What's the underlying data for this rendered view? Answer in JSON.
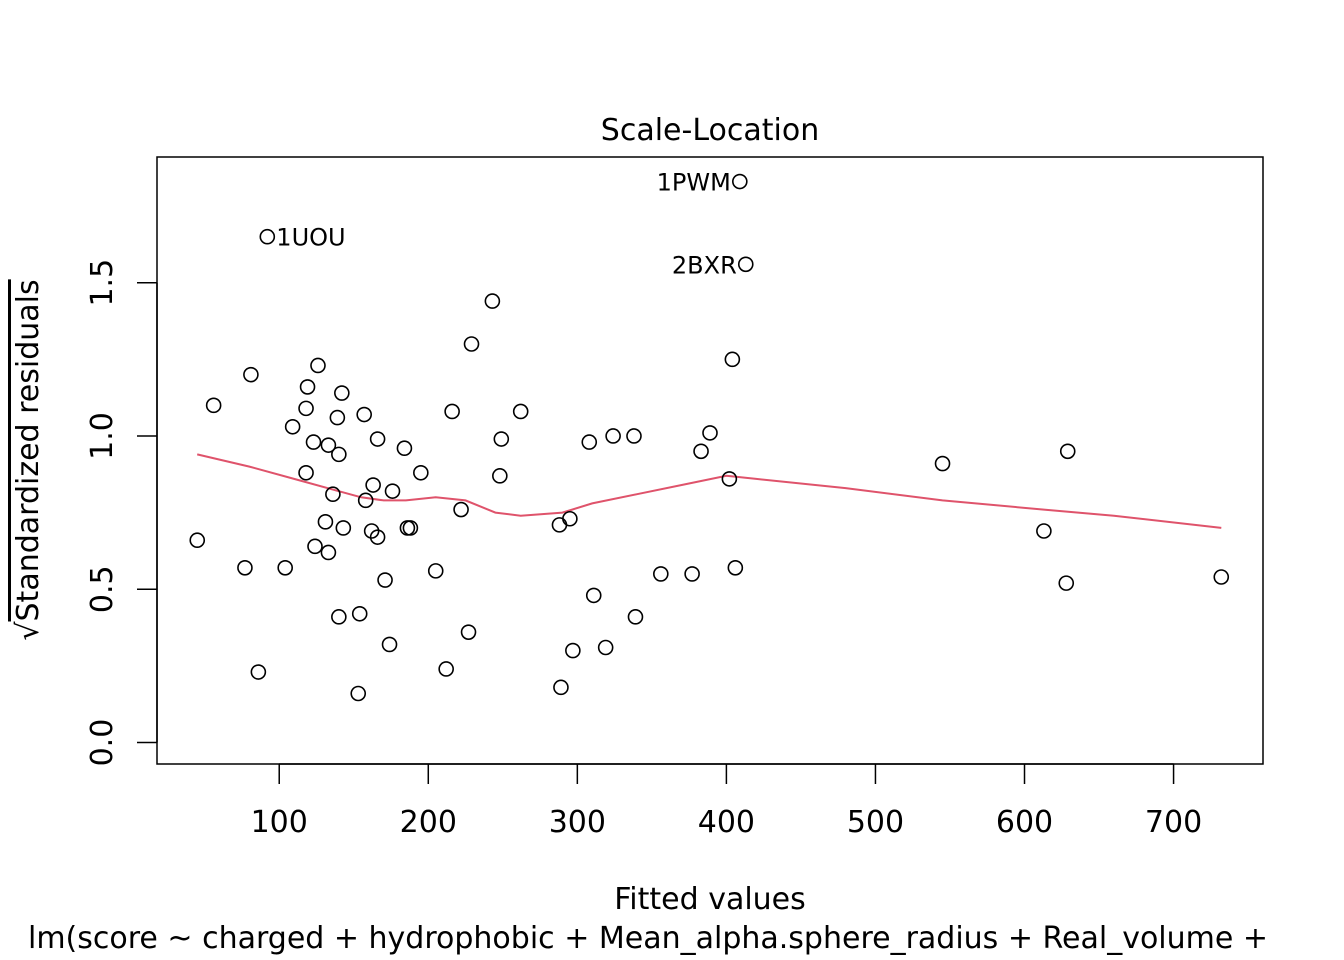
{
  "chart_data": {
    "type": "scatter",
    "title": "Scale-Location",
    "xlabel": "Fitted values",
    "ylabel": "Standardized residuals",
    "ylabel_prefix": "√",
    "subtitle": "lm(score ~ charged + hydrophobic + Mean_alpha.sphere_radius + Real_volume +",
    "xlim": [
      18,
      760
    ],
    "ylim": [
      -0.07,
      1.91
    ],
    "x_ticks": [
      100,
      200,
      300,
      400,
      500,
      600,
      700
    ],
    "x_tick_labels": [
      "100",
      "200",
      "300",
      "400",
      "500",
      "600",
      "700"
    ],
    "y_ticks": [
      0.0,
      0.5,
      1.0,
      1.5
    ],
    "y_tick_labels": [
      "0.0",
      "0.5",
      "1.0",
      "1.5"
    ],
    "grid": false,
    "smooth_color": "#DF536B",
    "point_color": "#000000",
    "points": [
      [
        409,
        1.83
      ],
      [
        92,
        1.65
      ],
      [
        413,
        1.56
      ],
      [
        243,
        1.44
      ],
      [
        229,
        1.3
      ],
      [
        404,
        1.25
      ],
      [
        126,
        1.23
      ],
      [
        81,
        1.2
      ],
      [
        119,
        1.16
      ],
      [
        142,
        1.14
      ],
      [
        56,
        1.1
      ],
      [
        118,
        1.09
      ],
      [
        216,
        1.08
      ],
      [
        262,
        1.08
      ],
      [
        157,
        1.07
      ],
      [
        139,
        1.06
      ],
      [
        109,
        1.03
      ],
      [
        389,
        1.01
      ],
      [
        324,
        1.0
      ],
      [
        338,
        1.0
      ],
      [
        166,
        0.99
      ],
      [
        249,
        0.99
      ],
      [
        123,
        0.98
      ],
      [
        308,
        0.98
      ],
      [
        133,
        0.97
      ],
      [
        184,
        0.96
      ],
      [
        383,
        0.95
      ],
      [
        629,
        0.95
      ],
      [
        140,
        0.94
      ],
      [
        545,
        0.91
      ],
      [
        118,
        0.88
      ],
      [
        195,
        0.88
      ],
      [
        248,
        0.87
      ],
      [
        402,
        0.86
      ],
      [
        163,
        0.84
      ],
      [
        176,
        0.82
      ],
      [
        136,
        0.81
      ],
      [
        158,
        0.79
      ],
      [
        222,
        0.76
      ],
      [
        131,
        0.72
      ],
      [
        295,
        0.73
      ],
      [
        288,
        0.71
      ],
      [
        143,
        0.7
      ],
      [
        162,
        0.69
      ],
      [
        186,
        0.7
      ],
      [
        188,
        0.7
      ],
      [
        613,
        0.69
      ],
      [
        166,
        0.67
      ],
      [
        45,
        0.66
      ],
      [
        124,
        0.64
      ],
      [
        133,
        0.62
      ],
      [
        77,
        0.57
      ],
      [
        104,
        0.57
      ],
      [
        205,
        0.56
      ],
      [
        406,
        0.57
      ],
      [
        377,
        0.55
      ],
      [
        356,
        0.55
      ],
      [
        171,
        0.53
      ],
      [
        732,
        0.54
      ],
      [
        628,
        0.52
      ],
      [
        311,
        0.48
      ],
      [
        154,
        0.42
      ],
      [
        140,
        0.41
      ],
      [
        339,
        0.41
      ],
      [
        227,
        0.36
      ],
      [
        174,
        0.32
      ],
      [
        297,
        0.3
      ],
      [
        319,
        0.31
      ],
      [
        212,
        0.24
      ],
      [
        86,
        0.23
      ],
      [
        289,
        0.18
      ],
      [
        153,
        0.16
      ]
    ],
    "labels": [
      {
        "text": "1PWM",
        "x": 409,
        "y": 1.83,
        "side": "left"
      },
      {
        "text": "1UOU",
        "x": 92,
        "y": 1.65,
        "side": "right"
      },
      {
        "text": "2BXR",
        "x": 413,
        "y": 1.56,
        "side": "left"
      }
    ],
    "smooth": [
      [
        45,
        0.94
      ],
      [
        80,
        0.9
      ],
      [
        110,
        0.86
      ],
      [
        140,
        0.82
      ],
      [
        155,
        0.8
      ],
      [
        170,
        0.79
      ],
      [
        185,
        0.79
      ],
      [
        205,
        0.8
      ],
      [
        225,
        0.79
      ],
      [
        245,
        0.75
      ],
      [
        262,
        0.74
      ],
      [
        290,
        0.75
      ],
      [
        310,
        0.78
      ],
      [
        340,
        0.81
      ],
      [
        370,
        0.84
      ],
      [
        400,
        0.87
      ],
      [
        420,
        0.86
      ],
      [
        480,
        0.83
      ],
      [
        545,
        0.79
      ],
      [
        613,
        0.76
      ],
      [
        660,
        0.74
      ],
      [
        732,
        0.7
      ]
    ]
  }
}
